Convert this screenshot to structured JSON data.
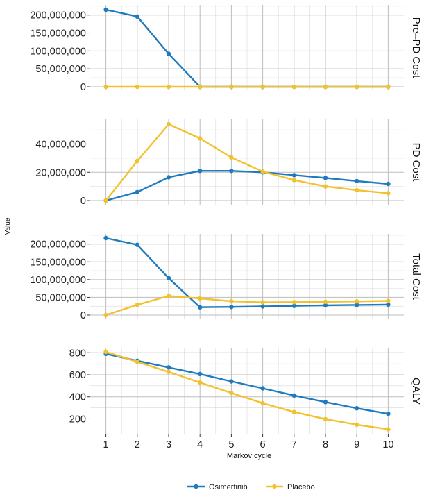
{
  "chart_data": {
    "type": "line",
    "x": [
      1,
      2,
      3,
      4,
      5,
      6,
      7,
      8,
      9,
      10
    ],
    "xlabel": "Markov cycle",
    "ylabel": "Value",
    "grid": true,
    "legend_position": "bottom",
    "series_colors": {
      "Osimertinib": "#1f7bbf",
      "Placebo": "#f2c12e"
    },
    "legend": [
      "Osimertinib",
      "Placebo"
    ],
    "panels": [
      {
        "strip_label": "Pre–PD Cost",
        "ylim": [
          0,
          215000000
        ],
        "yticks": [
          0,
          50000000,
          100000000,
          150000000,
          200000000
        ],
        "ytick_labels": [
          "0",
          "50,000,000",
          "100,000,000",
          "150,000,000",
          "200,000,000"
        ],
        "series": [
          {
            "name": "Osimertinib",
            "values": [
              215000000,
              196000000,
              92000000,
              0,
              0,
              0,
              0,
              0,
              0,
              0
            ]
          },
          {
            "name": "Placebo",
            "values": [
              0,
              0,
              0,
              0,
              0,
              0,
              0,
              0,
              0,
              0
            ]
          }
        ]
      },
      {
        "strip_label": "PD Cost",
        "ylim": [
          0,
          54000000
        ],
        "yticks": [
          0,
          20000000,
          40000000
        ],
        "ytick_labels": [
          "0",
          "20,000,000",
          "40,000,000"
        ],
        "series": [
          {
            "name": "Osimertinib",
            "values": [
              0,
              6000000,
              16500000,
              21000000,
              21000000,
              20000000,
              18000000,
              16000000,
              13800000,
              11800000
            ]
          },
          {
            "name": "Placebo",
            "values": [
              0,
              28000000,
              54000000,
              44000000,
              30500000,
              20500000,
              14500000,
              10000000,
              7300000,
              5200000
            ]
          }
        ]
      },
      {
        "strip_label": "Total Cost",
        "ylim": [
          0,
          217000000
        ],
        "yticks": [
          0,
          50000000,
          100000000,
          150000000,
          200000000
        ],
        "ytick_labels": [
          "0",
          "50,000,000",
          "100,000,000",
          "150,000,000",
          "200,000,000"
        ],
        "series": [
          {
            "name": "Osimertinib",
            "values": [
              217000000,
              198000000,
              104000000,
              22000000,
              23000000,
              24500000,
              26000000,
              27500000,
              28500000,
              29500000
            ]
          },
          {
            "name": "Placebo",
            "values": [
              0,
              29000000,
              54000000,
              47000000,
              39000000,
              36000000,
              36500000,
              37500000,
              38500000,
              40000000
            ]
          }
        ]
      },
      {
        "strip_label": "QALY",
        "ylim": [
          102,
          808
        ],
        "yticks": [
          200,
          400,
          600,
          800
        ],
        "ytick_labels": [
          "200",
          "400",
          "600",
          "800"
        ],
        "series": [
          {
            "name": "Osimertinib",
            "values": [
              790,
              727,
              667,
              607,
              540,
              477,
              412,
              352,
              296,
              246
            ]
          },
          {
            "name": "Placebo",
            "values": [
              808,
              718,
              626,
              530,
              435,
              342,
              262,
              198,
              147,
              105
            ]
          }
        ]
      }
    ]
  }
}
